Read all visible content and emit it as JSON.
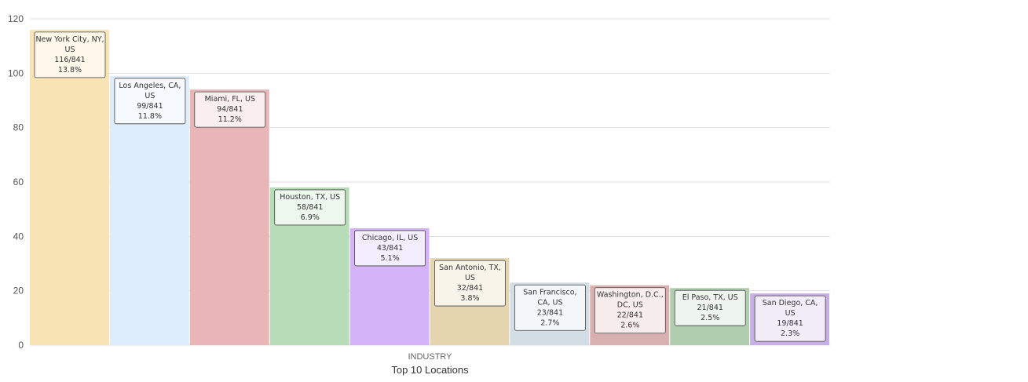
{
  "chart_data": {
    "type": "bar",
    "title": "",
    "xlabel": "Top 10 Locations",
    "ylabel": "",
    "category_label": "INDUSTRY",
    "ylim": [
      0,
      120
    ],
    "yticks": [
      0,
      20,
      40,
      60,
      80,
      100,
      120
    ],
    "grid": true,
    "legend": "none",
    "total": 841,
    "bars": [
      {
        "location": [
          "New York City, NY,",
          "US"
        ],
        "value": 116,
        "fraction": "116/841",
        "percent": "13.8%",
        "color": "#f8e4b4",
        "tip_bg": "#fdf8ea"
      },
      {
        "location": [
          "Los Angeles, CA,",
          "US"
        ],
        "value": 99,
        "fraction": "99/841",
        "percent": "11.8%",
        "color": "#deedfb",
        "tip_bg": "#f6fafe"
      },
      {
        "location": [
          "Miami, FL, US"
        ],
        "value": 94,
        "fraction": "94/841",
        "percent": "11.2%",
        "color": "#e8b6b6",
        "tip_bg": "#faeeee"
      },
      {
        "location": [
          "Houston, TX, US"
        ],
        "value": 58,
        "fraction": "58/841",
        "percent": "6.9%",
        "color": "#b8dcb8",
        "tip_bg": "#eef7ee"
      },
      {
        "location": [
          "Chicago, IL, US"
        ],
        "value": 43,
        "fraction": "43/841",
        "percent": "5.1%",
        "color": "#d4b4f6",
        "tip_bg": "#f4edfd"
      },
      {
        "location": [
          "San Antonio, TX,",
          "US"
        ],
        "value": 32,
        "fraction": "32/841",
        "percent": "3.8%",
        "color": "#e6d6b0",
        "tip_bg": "#f8f4ea"
      },
      {
        "location": [
          "San Francisco,",
          "CA, US"
        ],
        "value": 23,
        "fraction": "23/841",
        "percent": "2.7%",
        "color": "#d2dde6",
        "tip_bg": "#f4f7f9"
      },
      {
        "location": [
          "Washington, D.C.,",
          "DC, US"
        ],
        "value": 22,
        "fraction": "22/841",
        "percent": "2.6%",
        "color": "#d8b0b0",
        "tip_bg": "#f7eded"
      },
      {
        "location": [
          "El Paso, TX, US"
        ],
        "value": 21,
        "fraction": "21/841",
        "percent": "2.5%",
        "color": "#b0cdb0",
        "tip_bg": "#eef5ee"
      },
      {
        "location": [
          "San Diego, CA,",
          "US"
        ],
        "value": 19,
        "fraction": "19/841",
        "percent": "2.3%",
        "color": "#c8aee6",
        "tip_bg": "#f3edfa"
      }
    ]
  }
}
